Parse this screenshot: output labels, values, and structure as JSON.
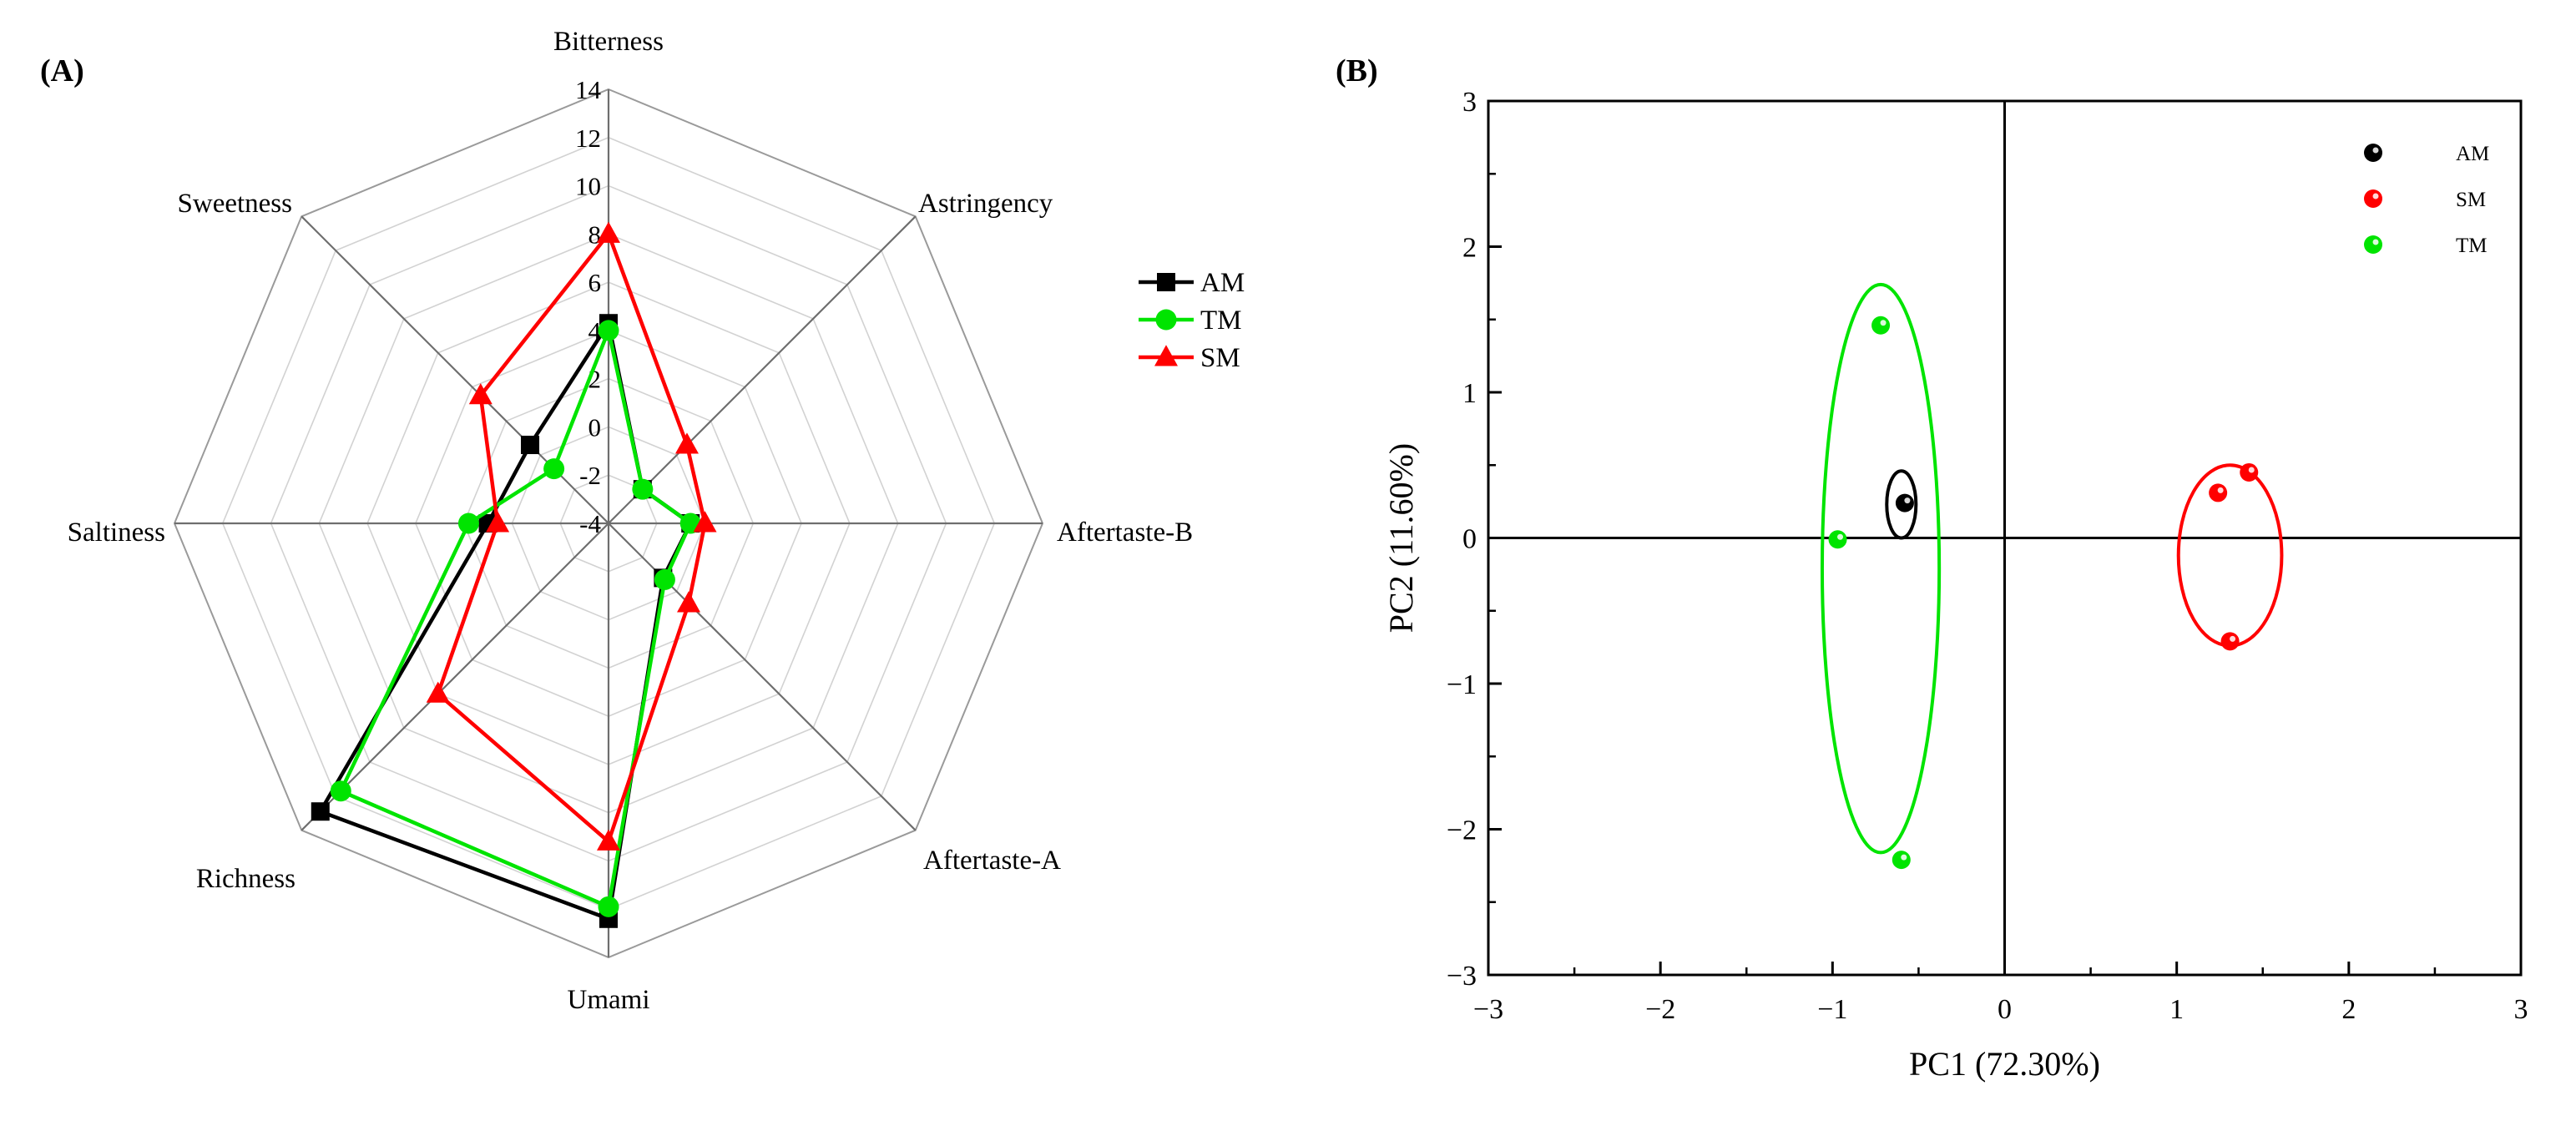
{
  "panels": {
    "a_label": "(A)",
    "b_label": "(B)"
  },
  "chart_data": [
    {
      "type": "radar",
      "panel": "(A)",
      "axes": [
        "Bitterness",
        "Astringency",
        "Aftertaste-B",
        "Aftertaste-A",
        "Umami",
        "Richness",
        "Saltiness",
        "Sweetness"
      ],
      "rlim": [
        -4,
        14
      ],
      "ticks": [
        14,
        12,
        10,
        8,
        6,
        4,
        2,
        0,
        -2,
        -4
      ],
      "tick_labels": [
        "14",
        "12",
        "10",
        "8",
        "6",
        "4",
        "2",
        "0",
        "-2",
        "-4"
      ],
      "series": [
        {
          "name": "AM",
          "color": "#000000",
          "marker": "square",
          "values": [
            4.3,
            -2.0,
            -0.6,
            -0.8,
            12.4,
            12.9,
            1.0,
            0.6
          ]
        },
        {
          "name": "TM",
          "color": "#00e400",
          "marker": "circle",
          "values": [
            4.0,
            -2.0,
            -0.6,
            -0.7,
            11.9,
            11.7,
            1.8,
            -0.8
          ]
        },
        {
          "name": "SM",
          "color": "#ff0000",
          "marker": "triangle",
          "values": [
            8.0,
            0.6,
            0.0,
            0.7,
            9.2,
            6.0,
            0.6,
            3.5
          ]
        }
      ]
    },
    {
      "type": "scatter",
      "panel": "(B)",
      "xlabel": "PC1 (72.30%)",
      "ylabel": "PC2 (11.60%)",
      "xlim": [
        -3,
        3
      ],
      "ylim": [
        -3,
        3
      ],
      "xticks": [
        -3,
        -2,
        -1,
        0,
        1,
        2,
        3
      ],
      "yticks": [
        -3,
        -2,
        -1,
        0,
        1,
        2,
        3
      ],
      "xtick_labels": [
        "−3",
        "−2",
        "−1",
        "0",
        "1",
        "2",
        "3"
      ],
      "ytick_labels": [
        "−3",
        "−2",
        "−1",
        "0",
        "1",
        "2",
        "3"
      ],
      "legend_position": "top-right",
      "series": [
        {
          "name": "AM",
          "color": "#000000",
          "points": [
            [
              -0.58,
              0.24
            ]
          ],
          "ellipse": {
            "cx": -0.6,
            "cy": 0.23,
            "rx": 0.085,
            "ry": 0.23
          }
        },
        {
          "name": "SM",
          "color": "#ff0000",
          "points": [
            [
              1.42,
              0.45
            ],
            [
              1.24,
              0.31
            ],
            [
              1.31,
              -0.71
            ]
          ],
          "ellipse": {
            "cx": 1.31,
            "cy": -0.12,
            "rx": 0.3,
            "ry": 0.62
          }
        },
        {
          "name": "TM",
          "color": "#00e400",
          "points": [
            [
              -0.72,
              1.46
            ],
            [
              -0.97,
              -0.01
            ],
            [
              -0.6,
              -2.21
            ]
          ],
          "ellipse": {
            "cx": -0.72,
            "cy": -0.21,
            "rx": 0.34,
            "ry": 1.95
          }
        }
      ]
    }
  ]
}
